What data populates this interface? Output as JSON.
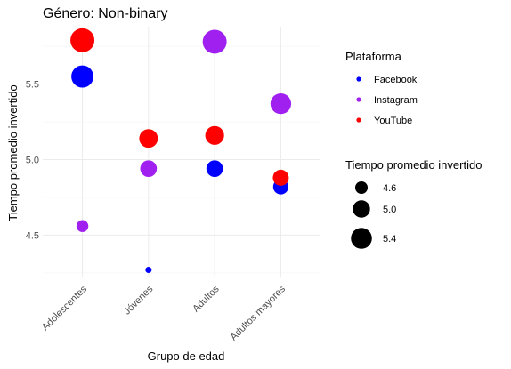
{
  "chart_data": {
    "type": "scatter",
    "title": "Género: Non-binary",
    "xlabel": "Grupo de edad",
    "ylabel": "Tiempo promedio invertido",
    "categories": [
      "Adolescentes",
      "Jóvenes",
      "Adultos",
      "Adultos mayores"
    ],
    "ylim": [
      4.22,
      5.88
    ],
    "yticks": [
      4.5,
      5.0,
      5.5
    ],
    "ytick_labels": [
      "4.5",
      "5.0",
      "5.5"
    ],
    "grid": true,
    "x_tick_rotation_deg": 45,
    "color_legend": {
      "title": "Plataforma",
      "entries": [
        {
          "name": "Facebook",
          "color": "#0000FF"
        },
        {
          "name": "Instagram",
          "color": "#A020F0"
        },
        {
          "name": "YouTube",
          "color": "#FF0000"
        }
      ]
    },
    "size_legend": {
      "title": "Tiempo promedio invertido",
      "breaks": [
        4.6,
        5.0,
        5.4
      ],
      "labels": [
        "4.6",
        "5.0",
        "5.4"
      ]
    },
    "size_range": [
      4.27,
      5.79
    ],
    "series": [
      {
        "name": "Facebook",
        "color": "#0000FF",
        "points": [
          {
            "x": "Adolescentes",
            "y": 5.55
          },
          {
            "x": "Jóvenes",
            "y": 4.27
          },
          {
            "x": "Adultos",
            "y": 4.94
          },
          {
            "x": "Adultos mayores",
            "y": 4.82
          }
        ]
      },
      {
        "name": "Instagram",
        "color": "#A020F0",
        "points": [
          {
            "x": "Adolescentes",
            "y": 4.56
          },
          {
            "x": "Jóvenes",
            "y": 4.94
          },
          {
            "x": "Adultos",
            "y": 5.78
          },
          {
            "x": "Adultos mayores",
            "y": 5.37
          }
        ]
      },
      {
        "name": "YouTube",
        "color": "#FF0000",
        "points": [
          {
            "x": "Adolescentes",
            "y": 5.79
          },
          {
            "x": "Jóvenes",
            "y": 5.14
          },
          {
            "x": "Adultos",
            "y": 5.16
          },
          {
            "x": "Adultos mayores",
            "y": 4.88
          }
        ]
      }
    ]
  }
}
